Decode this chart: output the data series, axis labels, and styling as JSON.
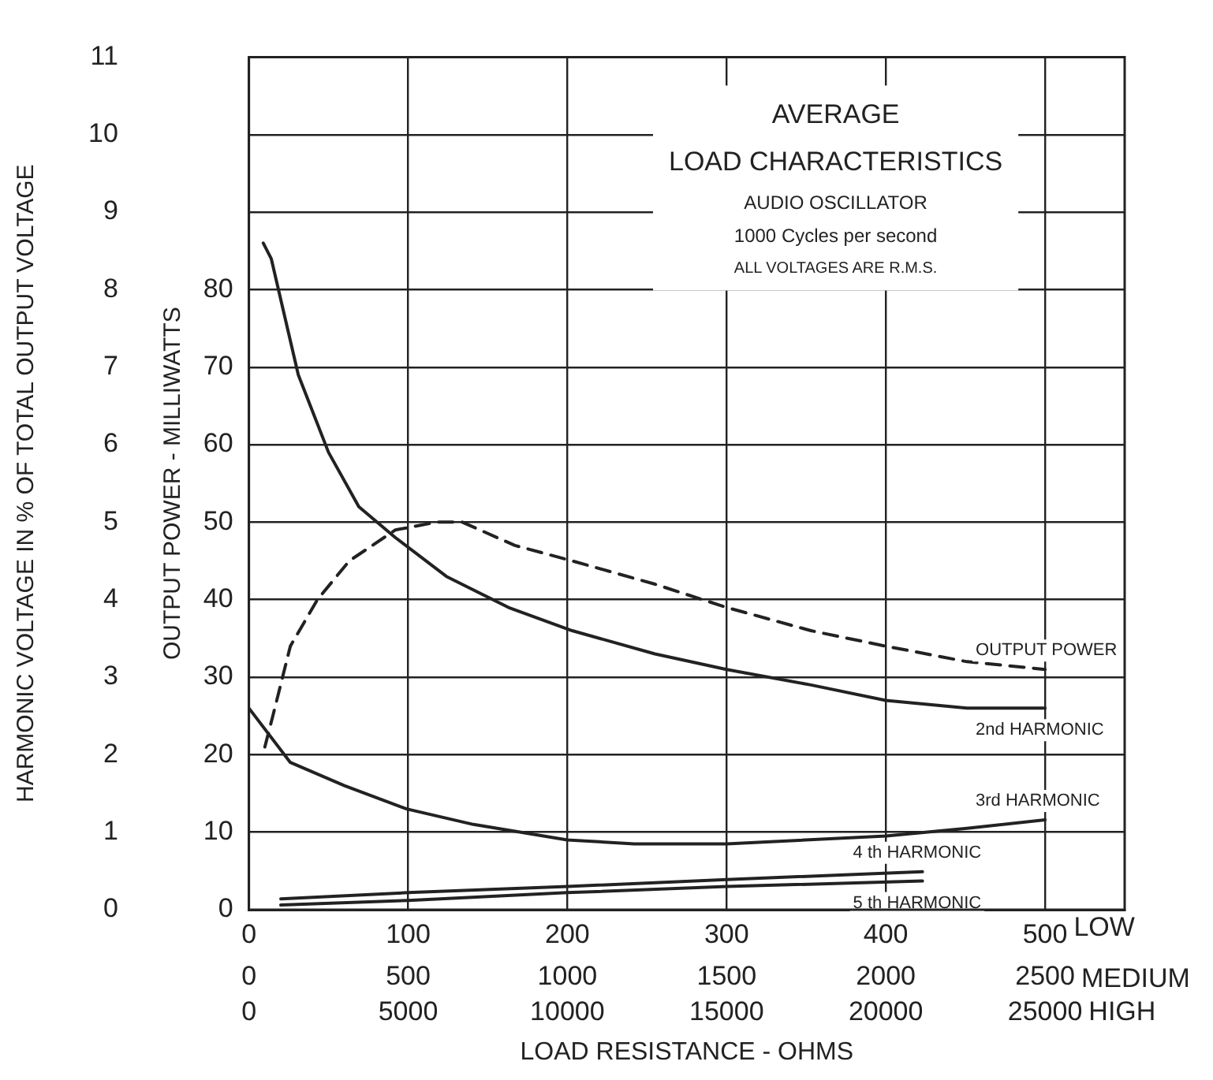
{
  "chart_data": {
    "type": "line",
    "title": "AVERAGE\nLOAD CHARACTERISTICS",
    "subtitle": "AUDIO OSCILLATOR",
    "xlabel": "LOAD RESISTANCE - OHMS",
    "ylabel": "HARMONIC VOLTAGE IN % OF TOTAL OUTPUT VOLTAGE",
    "y2label": "OUTPUT POWER - MILLIWATTS",
    "annotations": [
      "1000 Cycles per second",
      "ALL VOLTAGES ARE R.M.S.",
      "LOW",
      "MEDIUM",
      "HIGH",
      "0",
      "5000",
      "10000",
      "15000",
      "20000",
      "25000"
    ],
    "xlim": [
      0,
      550
    ],
    "xticks": [
      0,
      100,
      200,
      300,
      400,
      500
    ],
    "x2lim": [
      0,
      2750
    ],
    "x2ticks": [
      0,
      500,
      1000,
      1500,
      2000,
      2500
    ],
    "ylim": [
      0,
      11
    ],
    "yticks": [
      0,
      1,
      2,
      3,
      4,
      5,
      6,
      7,
      8,
      9,
      10,
      11
    ],
    "y2lim": [
      0,
      110
    ],
    "y2ticks": [
      0,
      10,
      20,
      30,
      40,
      50,
      60,
      70,
      80
    ],
    "grid": true,
    "legend": false,
    "marker": "none",
    "series": [
      {
        "name": "OUTPUT POWER",
        "color": "#222222",
        "axis": "y2",
        "line_style": "dashed",
        "x": [
          10,
          15,
          26,
          43,
          63,
          92,
          118,
          134,
          167,
          203,
          255,
          300,
          353,
          400,
          451,
          500
        ],
        "values": [
          21,
          25,
          34,
          40,
          45,
          49,
          50,
          50,
          47,
          45,
          42,
          39,
          36,
          34,
          32,
          31
        ]
      },
      {
        "name": "2nd HARMONIC",
        "color": "#222222",
        "line_style": "solid",
        "x": [
          9,
          14,
          31,
          50,
          69,
          92,
          124,
          163,
          203,
          255,
          300,
          353,
          400,
          451,
          500
        ],
        "values": [
          8.6,
          8.4,
          6.9,
          5.9,
          5.2,
          4.8,
          4.3,
          3.9,
          3.6,
          3.3,
          3.1,
          2.9,
          2.7,
          2.6,
          2.6
        ]
      },
      {
        "name": "3rd HARMONIC",
        "color": "#222222",
        "line_style": "solid",
        "x": [
          0,
          26,
          60,
          99,
          141,
          200,
          242,
          300,
          320,
          400,
          451,
          500
        ],
        "values": [
          2.6,
          1.9,
          1.6,
          1.3,
          1.1,
          0.9,
          0.85,
          0.85,
          0.87,
          0.95,
          1.05,
          1.16
        ]
      },
      {
        "name": "4 th HARMONIC",
        "color": "#222222",
        "line_style": "solid",
        "x": [
          20,
          100,
          200,
          300,
          423
        ],
        "values": [
          0.14,
          0.22,
          0.3,
          0.39,
          0.49
        ]
      },
      {
        "name": "5 th HARMONIC",
        "color": "#222222",
        "line_style": "solid",
        "x": [
          20,
          100,
          200,
          300,
          423
        ],
        "values": [
          0.06,
          0.12,
          0.22,
          0.3,
          0.37
        ]
      }
    ]
  }
}
